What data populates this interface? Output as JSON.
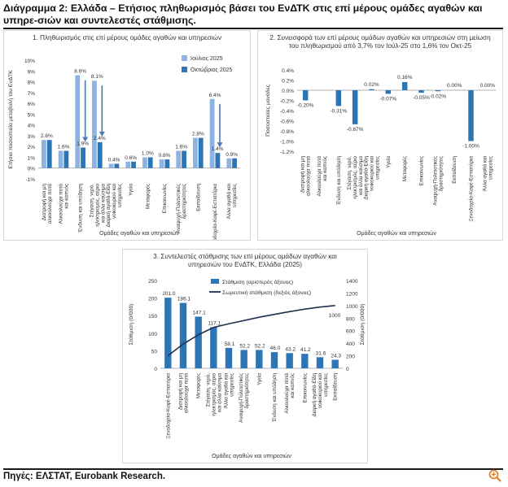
{
  "page": {
    "title": "Διάγραμμα 2: Ελλάδα – Ετήσιος πληθωρισμός βάσει του ΕνΔΤΚ στις επί μέρους ομάδες αγαθών και υπηρε-σιών και συντελεστές στάθμισης.",
    "source": "Πηγές: ΕΛΣΤΑΤ, Eurobank Research.",
    "zoom_icon": "zoom-in-icon"
  },
  "colors": {
    "light_bar": "#8db3e2",
    "dark_bar": "#2e75b6",
    "line": "#1f2d4e",
    "arrow": "#4a78b5",
    "text": "#333333"
  },
  "chart_data": [
    {
      "type": "bar",
      "title": "1. Πληθωρισμός στις επί μέρους ομάδες αγαθών και υπηρεσιών",
      "ylabel": "Ετήσια ποσοστιαία μεταβολή του ΕνΔΤΚ",
      "xlabel": "Ομάδες αγαθών και υπηρεσιών",
      "ylim": [
        -1,
        10
      ],
      "yticks": [
        "10%",
        "9%",
        "8%",
        "7%",
        "6%",
        "5%",
        "4%",
        "3%",
        "2%",
        "1%",
        "0%",
        "-1%"
      ],
      "legend_position": "top-right",
      "categories": [
        "Διατροφή και μη αλκοολούχα ποτά",
        "Αλκοολούχα ποτά και καπνός",
        "Ένδυση και υπόδηση",
        "Στέγαση, νερό, ηλεκτρισμός, αέριο και άλλα καύσιμα",
        "Διαρκή αγαθά-Είδη νοικοκυριού και υπηρεσίες",
        "Υγεία",
        "Μεταφορές",
        "Επικοινωνίες",
        "Αναψυχή-Πολιτιστικές δραστηριότητες",
        "Εκπαίδευση",
        "Ξενοδοχεία-Καφέ-Εστιατόρια",
        "Άλλα αγαθά και υπηρεσίες"
      ],
      "series": [
        {
          "name": "Ιούλιος 2025",
          "values": [
            2.6,
            1.6,
            8.6,
            8.1,
            0.4,
            0.6,
            1.0,
            0.8,
            1.6,
            2.8,
            6.4,
            0.9
          ]
        },
        {
          "name": "Οκτώβριος 2025",
          "values": [
            2.6,
            1.6,
            1.9,
            2.4,
            0.4,
            0.6,
            1.0,
            0.8,
            1.6,
            2.8,
            1.4,
            0.9
          ]
        }
      ],
      "labels": [
        "2.6%",
        "1.6%",
        "8.6%",
        "8.1%",
        "0.4%",
        "0.6%",
        "1.0%",
        "0.8%",
        "1.6%",
        "2.8%",
        "6.4%",
        "0.9%"
      ],
      "labels_second": [
        "",
        "",
        "1.9%",
        "2.4%",
        "",
        "",
        "",
        "",
        "",
        "",
        "1.4%",
        ""
      ]
    },
    {
      "type": "bar",
      "title": "2. Συνεισφορά των επί μέρους ομάδων αγαθών και υπηρεσιών στη μείωση του πληθωρισμού από 3,7% τον Ιούλ-25 στο 1,6% τον Οκτ-25",
      "ylabel": "Ποσοστιαίες μονάδες",
      "xlabel": "Ομάδες αγαθών και υπηρεσιών",
      "ylim": [
        -1.2,
        0.4
      ],
      "yticks": [
        "0.4%",
        "0.2%",
        "0.0%",
        "-0.2%",
        "-0.4%",
        "-0.6%",
        "-0.8%",
        "-1.0%",
        "-1.2%"
      ],
      "categories": [
        "Διατροφή και μη αλκοολούχα ποτά",
        "Αλκοολούχα ποτά και καπνός",
        "Ένδυση και υπόδηση",
        "Στέγαση, νερό, ηλεκτρισμός, αέριο και άλλα καύσιμα",
        "Διαρκή αγαθά-Είδη νοικοκυριού και υπηρεσίες",
        "Υγεία",
        "Μεταφορές",
        "Επικοινωνίες",
        "Αναψυχή-Πολιτιστικές δραστηριότητες",
        "Εκπαίδευση",
        "Ξενοδοχεία-Καφέ-Εστιατόρια",
        "Άλλα αγαθά και υπηρεσίες"
      ],
      "values": [
        -0.2,
        0.0,
        -0.31,
        -0.67,
        0.02,
        -0.07,
        0.16,
        -0.05,
        -0.02,
        0.0,
        -1.0,
        0.0
      ],
      "labels": [
        "-0.20%",
        "",
        "-0.31%",
        "-0.67%",
        "0.02%",
        "-0.07%",
        "0.16%",
        "-0.05%",
        "-0.02%",
        "0.00%",
        "-1.00%",
        "0.00%"
      ]
    },
    {
      "type": "bar",
      "title": "3. Συντελεστές στάθμισης των επί μέρους ομάδων αγαθών και υπηρεσιών του ΕνΔΤΚ, Ελλάδα (2025)",
      "ylabel": "Στάθμιση (0/000)",
      "y2label": "Στάθμιση (0/000)",
      "xlabel": "Ομάδες αγαθών και υπηρεσιών",
      "ylim": [
        0,
        250
      ],
      "y2lim": [
        0,
        1400
      ],
      "yticks": [
        "250",
        "200",
        "150",
        "100",
        "50",
        "0"
      ],
      "y2ticks": [
        "1400",
        "1200",
        "1000",
        "800",
        "600",
        "400",
        "200",
        "0"
      ],
      "legend_position": "top",
      "categories": [
        "Ξενοδοχεία-Καφέ-Εστιατόρια",
        "Διατροφή και μη αλκοολούχα ποτά",
        "Μεταφορές",
        "Στέγαση, νερό, ηλεκτρισμός, αέριο και άλλα καύσιμα",
        "Άλλα αγαθά και υπηρεσίες",
        "Αναψυχή-Πολιτιστικές δραστηριότητες",
        "Υγεία",
        "Ένδυση και υπόδηση",
        "Αλκοολούχα ποτά και καπνός",
        "Επικοινωνίες",
        "Διαρκή αγαθά-Είδη νοικοκυριού και υπηρεσίες",
        "Εκπαίδευση"
      ],
      "series": [
        {
          "name": "Στάθμιση (αριστερός άξονας)",
          "values": [
            201.0,
            186.1,
            147.1,
            117.1,
            58.1,
            52.2,
            52.2,
            46.0,
            43.2,
            41.2,
            31.6,
            24.3
          ]
        },
        {
          "name": "Σωρευτική στάθμιση (δεξιός άξονας)",
          "values": [
            201.0,
            387.1,
            534.2,
            651.3,
            709.4,
            761.6,
            813.8,
            859.8,
            903.0,
            944.2,
            975.8,
            1000.0
          ]
        }
      ],
      "labels": [
        "201.0",
        "186.1",
        "147.1",
        "117.1",
        "58.1",
        "52.2",
        "52.2",
        "46.0",
        "43.2",
        "41.2",
        "31.6",
        "24.3"
      ],
      "end_label": "1000"
    }
  ]
}
